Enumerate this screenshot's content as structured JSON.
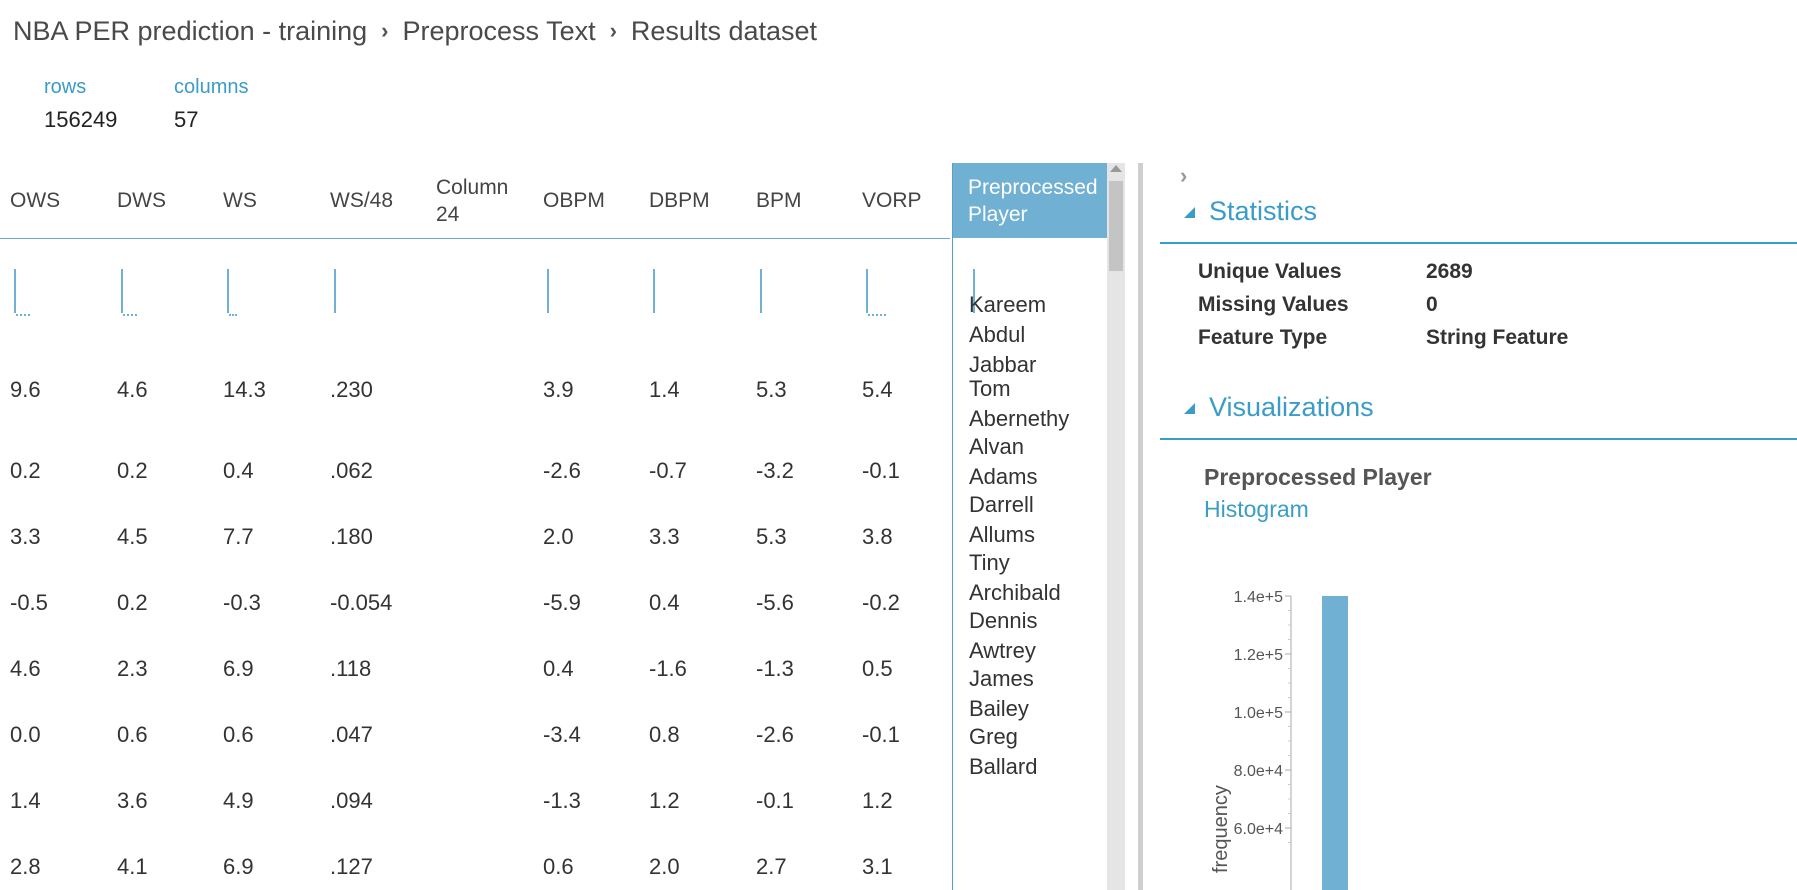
{
  "breadcrumb": [
    "NBA PER prediction - training",
    "Preprocess Text",
    "Results dataset"
  ],
  "dataset": {
    "rows_label": "rows",
    "rows_value": "156249",
    "columns_label": "columns",
    "columns_value": "57"
  },
  "table": {
    "columns": [
      "OWS",
      "DWS",
      "WS",
      "WS/48",
      "Column 24",
      "OBPM",
      "DBPM",
      "BPM",
      "VORP"
    ],
    "selected_column": "Preprocessed Player",
    "rows": [
      [
        "9.6",
        "4.6",
        "14.3",
        ".230",
        "",
        "3.9",
        "1.4",
        "5.3",
        "5.4"
      ],
      [
        "0.2",
        "0.2",
        "0.4",
        ".062",
        "",
        "-2.6",
        "-0.7",
        "-3.2",
        "-0.1"
      ],
      [
        "3.3",
        "4.5",
        "7.7",
        ".180",
        "",
        "2.0",
        "3.3",
        "5.3",
        "3.8"
      ],
      [
        "-0.5",
        "0.2",
        "-0.3",
        "-0.054",
        "",
        "-5.9",
        "0.4",
        "-5.6",
        "-0.2"
      ],
      [
        "4.6",
        "2.3",
        "6.9",
        ".118",
        "",
        "0.4",
        "-1.6",
        "-1.3",
        "0.5"
      ],
      [
        "0.0",
        "0.6",
        "0.6",
        ".047",
        "",
        "-3.4",
        "0.8",
        "-2.6",
        "-0.1"
      ],
      [
        "1.4",
        "3.6",
        "4.9",
        ".094",
        "",
        "-1.3",
        "1.2",
        "-0.1",
        "1.2"
      ],
      [
        "2.8",
        "4.1",
        "6.9",
        ".127",
        "",
        "0.6",
        "2.0",
        "2.7",
        "3.1"
      ]
    ],
    "players": [
      [
        "Kareem",
        "Abdul",
        "Jabbar"
      ],
      [
        "Tom",
        "Abernethy"
      ],
      [
        "Alvan",
        "Adams"
      ],
      [
        "Darrell",
        "Allums"
      ],
      [
        "Tiny",
        "Archibald"
      ],
      [
        "Dennis",
        "Awtrey"
      ],
      [
        "James",
        "Bailey"
      ],
      [
        "Greg",
        "Ballard"
      ]
    ]
  },
  "panel": {
    "statistics_title": "Statistics",
    "stats": [
      {
        "label": "Unique Values",
        "value": "2689"
      },
      {
        "label": "Missing Values",
        "value": "0"
      },
      {
        "label": "Feature Type",
        "value": "String Feature"
      }
    ],
    "visualizations_title": "Visualizations",
    "viz_column": "Preprocessed Player",
    "viz_type": "Histogram"
  },
  "chart_data": {
    "type": "bar",
    "ylabel": "frequency",
    "yticks": [
      "1.4e+5",
      "1.2e+5",
      "1.0e+5",
      "8.0e+4",
      "6.0e+4"
    ],
    "y_visible_range": [
      50000,
      140000
    ],
    "values": [
      140000
    ],
    "colors": {
      "bar": "#70b0d3"
    }
  },
  "colors": {
    "accent": "#3a9cc8",
    "selected_header": "#70b0d3"
  }
}
